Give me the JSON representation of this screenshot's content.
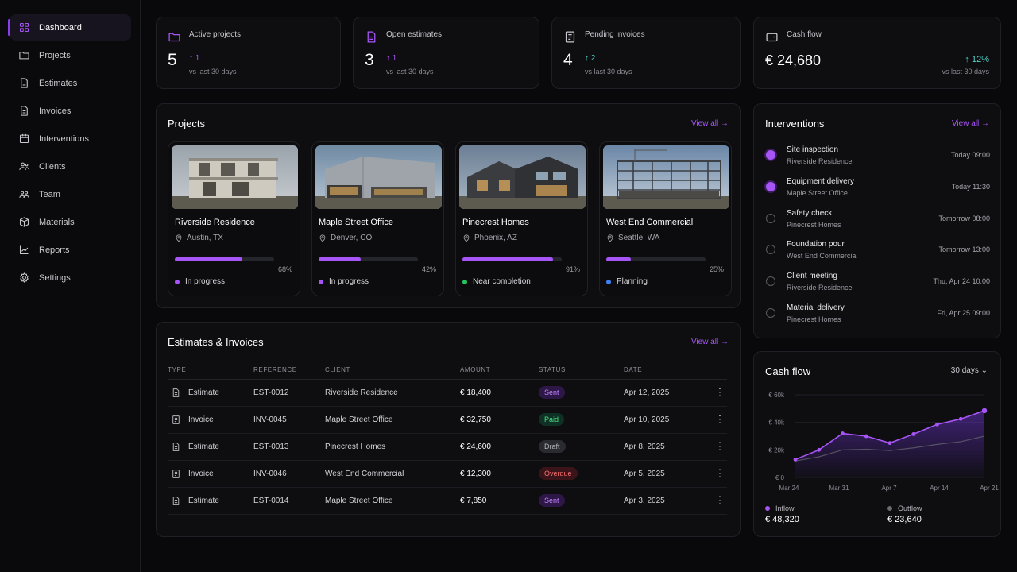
{
  "sidebar": {
    "items": [
      {
        "label": "Dashboard",
        "icon": "grid-icon"
      },
      {
        "label": "Projects",
        "icon": "folder-icon"
      },
      {
        "label": "Estimates",
        "icon": "document-icon"
      },
      {
        "label": "Invoices",
        "icon": "document-icon"
      },
      {
        "label": "Interventions",
        "icon": "calendar-icon"
      },
      {
        "label": "Clients",
        "icon": "users-icon"
      },
      {
        "label": "Team",
        "icon": "team-icon"
      },
      {
        "label": "Materials",
        "icon": "box-icon"
      },
      {
        "label": "Reports",
        "icon": "chart-icon"
      },
      {
        "label": "Settings",
        "icon": "gear-icon"
      }
    ]
  },
  "kpis": {
    "active_projects": {
      "label": "Active projects",
      "value": "5",
      "delta": "1",
      "sub": "vs last 30 days"
    },
    "open_estimates": {
      "label": "Open estimates",
      "value": "3",
      "delta": "1",
      "sub": "vs last 30 days"
    },
    "pending_invoices": {
      "label": "Pending invoices",
      "value": "4",
      "delta": "2",
      "sub": "vs last 30 days"
    },
    "cash_flow": {
      "label": "Cash flow",
      "value": "€ 24,680",
      "delta": "12%",
      "sub": "vs last 30 days"
    }
  },
  "projects": {
    "title": "Projects",
    "view_all": "View all",
    "items": [
      {
        "name": "Riverside Residence",
        "location": "Austin, TX",
        "progress": 0.68,
        "pct": "68%",
        "status": "In progress",
        "status_color": "#a855f7"
      },
      {
        "name": "Maple Street Office",
        "location": "Denver, CO",
        "progress": 0.42,
        "pct": "42%",
        "status": "In progress",
        "status_color": "#a855f7"
      },
      {
        "name": "Pinecrest Homes",
        "location": "Phoenix, AZ",
        "progress": 0.91,
        "pct": "91%",
        "status": "Near completion",
        "status_color": "#22c55e"
      },
      {
        "name": "West End Commercial",
        "location": "Seattle, WA",
        "progress": 0.25,
        "pct": "25%",
        "status": "Planning",
        "status_color": "#3b82f6"
      }
    ]
  },
  "estimates": {
    "title": "Estimates & Invoices",
    "view_all": "View all",
    "columns": [
      "TYPE",
      "REFERENCE",
      "CLIENT",
      "AMOUNT",
      "STATUS",
      "DATE"
    ],
    "rows": [
      {
        "type": "Estimate",
        "ref": "EST-0012",
        "client": "Riverside Residence",
        "amount": "€ 18,400",
        "status": "Sent",
        "date": "Apr 12, 2025"
      },
      {
        "type": "Invoice",
        "ref": "INV-0045",
        "client": "Maple Street Office",
        "amount": "€ 32,750",
        "status": "Paid",
        "date": "Apr 10, 2025"
      },
      {
        "type": "Estimate",
        "ref": "EST-0013",
        "client": "Pinecrest Homes",
        "amount": "€ 24,600",
        "status": "Draft",
        "date": "Apr 8, 2025"
      },
      {
        "type": "Invoice",
        "ref": "INV-0046",
        "client": "West End Commercial",
        "amount": "€ 12,300",
        "status": "Overdue",
        "date": "Apr 5, 2025"
      },
      {
        "type": "Estimate",
        "ref": "EST-0014",
        "client": "Maple Street Office",
        "amount": "€ 7,850",
        "status": "Sent",
        "date": "Apr 3, 2025"
      }
    ]
  },
  "interventions": {
    "title": "Interventions",
    "view_all": "View all",
    "items": [
      {
        "title": "Site inspection",
        "sub": "Riverside Residence",
        "time": "Today 09:00",
        "done": true
      },
      {
        "title": "Equipment delivery",
        "sub": "Maple Street Office",
        "time": "Today 11:30",
        "done": true
      },
      {
        "title": "Safety check",
        "sub": "Pinecrest Homes",
        "time": "Tomorrow 08:00",
        "done": false
      },
      {
        "title": "Foundation pour",
        "sub": "West End Commercial",
        "time": "Tomorrow 13:00",
        "done": false
      },
      {
        "title": "Client meeting",
        "sub": "Riverside Residence",
        "time": "Thu, Apr 24 10:00",
        "done": false
      },
      {
        "title": "Material delivery",
        "sub": "Pinecrest Homes",
        "time": "Fri, Apr 25 09:00",
        "done": false
      }
    ]
  },
  "cashflow_card": {
    "title": "Cash flow",
    "range": "30 days",
    "inflow_label": "Inflow",
    "inflow_value": "€ 48,320",
    "outflow_label": "Outflow",
    "outflow_value": "€ 23,640"
  },
  "chart_data": {
    "type": "line",
    "title": "Cash flow",
    "xlabel": "",
    "ylabel": "",
    "x_ticks": [
      "Mar 24",
      "Mar 31",
      "Apr 7",
      "Apr 14",
      "Apr 21"
    ],
    "y_ticks": [
      "€ 0",
      "€ 20k",
      "€ 40k",
      "€ 60k"
    ],
    "ylim": [
      0,
      60000
    ],
    "grid": true,
    "series": [
      {
        "name": "Inflow",
        "color": "#a855f7",
        "values": [
          13000,
          20000,
          32000,
          30000,
          25000,
          31500,
          38500,
          42500,
          48500
        ]
      },
      {
        "name": "Outflow",
        "color": "#6b6b73",
        "values": [
          12000,
          15000,
          20000,
          20500,
          19500,
          21500,
          24000,
          26000,
          30000
        ]
      }
    ]
  }
}
